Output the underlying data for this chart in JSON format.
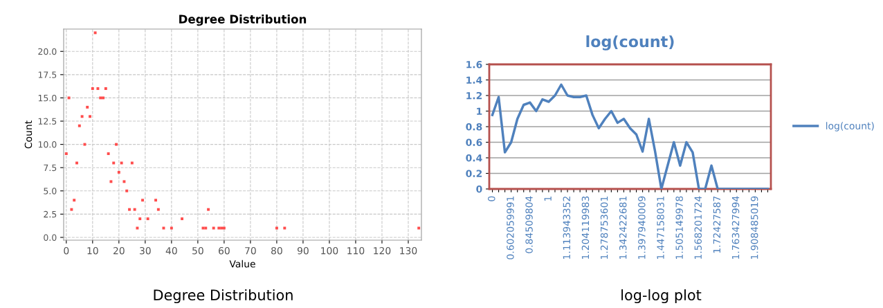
{
  "chart_data": [
    {
      "type": "scatter",
      "title": "Degree Distribution",
      "xlabel": "Value",
      "ylabel": "Count",
      "x": [
        0,
        1,
        2,
        3,
        4,
        5,
        6,
        7,
        8,
        9,
        10,
        11,
        12,
        13,
        14,
        15,
        16,
        17,
        18,
        19,
        20,
        21,
        22,
        23,
        24,
        25,
        26,
        27,
        28,
        29,
        31,
        34,
        35,
        37,
        40,
        44,
        52,
        53,
        54,
        56,
        58,
        59,
        60,
        80,
        83,
        134
      ],
      "series": [
        {
          "color": "#ff4d4d",
          "values": [
            9,
            15,
            3,
            4,
            8,
            12,
            13,
            10,
            14,
            13,
            16,
            22,
            16,
            15,
            15,
            16,
            9,
            6,
            8,
            10,
            7,
            8,
            6,
            5,
            3,
            8,
            3,
            1,
            2,
            4,
            2,
            4,
            3,
            1,
            1,
            2,
            1,
            1,
            3,
            1,
            1,
            1,
            1,
            1,
            1,
            1
          ]
        }
      ],
      "xlim": [
        -1,
        135
      ],
      "xticks": [
        0,
        10,
        20,
        30,
        40,
        50,
        60,
        70,
        80,
        90,
        100,
        110,
        120,
        130
      ],
      "ylim": [
        -0.3,
        22.4
      ],
      "yticks": [
        {
          "value": 0,
          "label": "0.0"
        },
        {
          "value": 2.5,
          "label": "2.5"
        },
        {
          "value": 5,
          "label": "5.0"
        },
        {
          "value": 7.5,
          "label": "7.5"
        },
        {
          "value": 10,
          "label": "10.0"
        },
        {
          "value": 12.5,
          "label": "12.5"
        },
        {
          "value": 15,
          "label": "15.0"
        },
        {
          "value": 17.5,
          "label": "17.5"
        },
        {
          "value": 20,
          "label": "20.0"
        }
      ],
      "grid": true,
      "marker": "square",
      "annotations": [
        "Degree Distribution"
      ]
    },
    {
      "type": "line",
      "title": "log(count)",
      "categories": [
        "0",
        null,
        null,
        "0.602059991",
        null,
        null,
        "0.84509804",
        null,
        null,
        "1",
        null,
        null,
        "1.113943352",
        null,
        null,
        "1.204119983",
        null,
        null,
        "1.278753601",
        null,
        null,
        "1.342422681",
        null,
        null,
        "1.397940009",
        null,
        null,
        "1.447158031",
        null,
        null,
        "1.505149978",
        null,
        null,
        "1.568201724",
        null,
        null,
        "1.72427587",
        null,
        null,
        "1.763427994",
        null,
        null,
        "1.908485019",
        null,
        null
      ],
      "series": [
        {
          "name": "log(count)",
          "color": "#4f81bd",
          "values": [
            0.95,
            1.18,
            0.47,
            0.6,
            0.9,
            1.08,
            1.11,
            1.0,
            1.15,
            1.12,
            1.2,
            1.34,
            1.2,
            1.18,
            1.18,
            1.2,
            0.95,
            0.78,
            0.9,
            1.0,
            0.85,
            0.9,
            0.78,
            0.7,
            0.48,
            0.9,
            0.48,
            0,
            0.3,
            0.6,
            0.3,
            0.6,
            0.47,
            0,
            0,
            0.3,
            0,
            0,
            0,
            0,
            0,
            0,
            0,
            0,
            0
          ]
        }
      ],
      "ylim": [
        0,
        1.6
      ],
      "yticks": [
        0,
        0.2,
        0.4,
        0.6,
        0.8,
        1,
        1.2,
        1.4,
        1.6
      ],
      "grid": "y",
      "legend": "right",
      "marker": "none",
      "line_style": "solid",
      "annotations": [
        "log-log plot"
      ]
    }
  ]
}
